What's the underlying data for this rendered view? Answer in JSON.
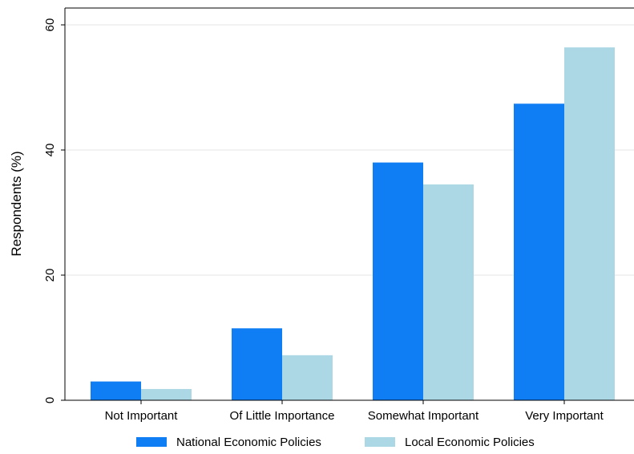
{
  "chart_data": {
    "type": "bar",
    "title": "",
    "xlabel": "",
    "ylabel": "Respondents (%)",
    "categories": [
      "Not Important",
      "Of Little Importance",
      "Somewhat Important",
      "Very Important"
    ],
    "series": [
      {
        "name": "National Economic Policies",
        "color": "#0f7df4",
        "values": [
          3.0,
          11.5,
          38.0,
          47.4
        ]
      },
      {
        "name": "Local Economic Policies",
        "color": "#acd7e5",
        "values": [
          1.8,
          7.2,
          34.5,
          56.4
        ]
      }
    ],
    "ylim": [
      0,
      60
    ],
    "yticks": [
      0,
      20,
      40,
      60
    ],
    "grid": true,
    "legend": "bottom"
  }
}
